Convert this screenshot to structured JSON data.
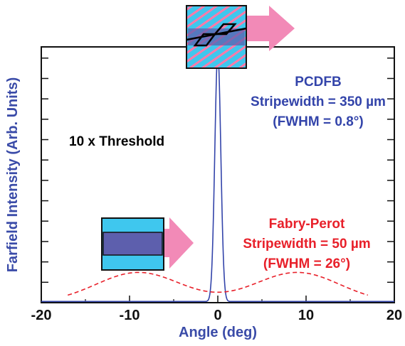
{
  "chart_data": {
    "type": "line",
    "title": "",
    "xlabel": "Angle (deg)",
    "ylabel": "Farfield Intensity (Arb. Units)",
    "xlim": [
      -20,
      20
    ],
    "ylim": [
      0,
      1.1
    ],
    "x_ticks": [
      -20,
      -10,
      0,
      10,
      20
    ],
    "y_ticks_count": 12,
    "grid": false,
    "series": [
      {
        "name": "PCDFB",
        "style": "solid",
        "color": "#3344aa",
        "shape": "gaussian",
        "center": 0,
        "fwhm": 0.8,
        "peak": 1.07,
        "floor": 0.005
      },
      {
        "name": "Fabry-Perot",
        "style": "dashed",
        "color": "#e8202a",
        "shape": "double-lobe",
        "lobe_centers": [
          -9,
          9
        ],
        "lobe_peak": 0.13,
        "lobe_width": 4.8,
        "extent": [
          -17,
          17
        ]
      }
    ],
    "annotations": [
      {
        "id": "threshold",
        "text": "10 x Threshold",
        "color": "#000000"
      },
      {
        "id": "pcdfb",
        "lines": [
          "PCDFB",
          "Stripewidth = 350 µm",
          "(FWHM = 0.8°)"
        ],
        "color": "#3344aa"
      },
      {
        "id": "fp",
        "lines": [
          "Fabry-Perot",
          "Stripewidth = 50 µm",
          "(FWHM = 26°)"
        ],
        "color": "#e8202a"
      }
    ]
  },
  "colors": {
    "axis": "#111111",
    "axis_title": "#3a4ba8",
    "chip_cyan": "#3fc7ee",
    "chip_stripe": "#5d5fad",
    "arrow_pink": "#f28ab7"
  },
  "icons": [
    "pcdfb-device-icon",
    "fabry-perot-device-icon"
  ]
}
